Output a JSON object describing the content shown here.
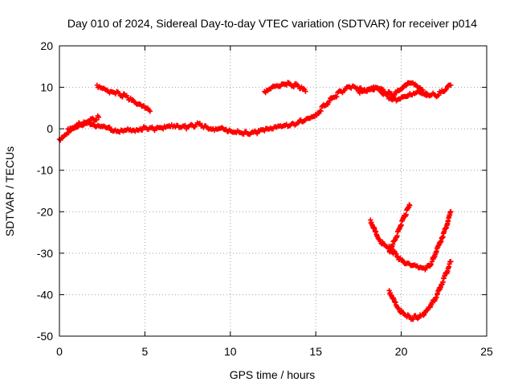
{
  "chart_data": {
    "type": "scatter",
    "title": "Day 010 of 2024, Sidereal Day-to-day VTEC variation (SDTVAR) for receiver p014",
    "xlabel": "GPS time / hours",
    "ylabel": "SDTVAR / TECUs",
    "xlim": [
      0,
      25
    ],
    "ylim": [
      -50,
      20
    ],
    "xticks": [
      0,
      5,
      10,
      15,
      20,
      25
    ],
    "yticks": [
      -50,
      -40,
      -30,
      -20,
      -10,
      0,
      10,
      20
    ],
    "xtick_labels": [
      "0",
      "5",
      "10",
      "15",
      "20",
      "25"
    ],
    "ytick_labels": [
      "-50",
      "-40",
      "-30",
      "-20",
      "-10",
      "0",
      "10",
      "20"
    ],
    "grid": true,
    "marker_color": "#ff0000",
    "series": [
      {
        "x": [
          0.0,
          0.3,
          0.6,
          0.9,
          1.2,
          1.5,
          1.8,
          2.1,
          2.4,
          2.8,
          3.2,
          3.6,
          4.0,
          4.5,
          5.0,
          5.5,
          6.0,
          6.5,
          7.0,
          7.5,
          8.0,
          8.5,
          9.0,
          9.5,
          10.0,
          10.5,
          11.0,
          11.5,
          12.0,
          12.5,
          13.0,
          13.5,
          14.0,
          14.5,
          15.0,
          15.5,
          16.0,
          16.5,
          17.0,
          17.5,
          18.0,
          18.5,
          19.0,
          19.5,
          20.0,
          20.5,
          21.0,
          21.5,
          22.0,
          22.5,
          22.9
        ],
        "y": [
          -2.5,
          -1.5,
          -0.5,
          0.5,
          1.2,
          1.3,
          1.0,
          0.5,
          0.5,
          0.2,
          -0.5,
          -0.3,
          0.0,
          -0.2,
          0.3,
          0.0,
          0.2,
          0.5,
          0.3,
          0.4,
          1.0,
          0.7,
          0.0,
          0.3,
          -0.5,
          -0.8,
          -1.2,
          -0.8,
          -0.5,
          0.0,
          0.5,
          0.8,
          1.5,
          2.5,
          3.5,
          5.5,
          7.5,
          9.0,
          10.0,
          9.5,
          9.0,
          10.0,
          8.5,
          7.0,
          7.5,
          8.5,
          9.0,
          8.5,
          8.0,
          9.0,
          10.5
        ]
      },
      {
        "x": [
          0.5,
          1.0,
          1.5,
          2.0,
          2.3
        ],
        "y": [
          0.0,
          0.8,
          1.5,
          2.3,
          2.8
        ]
      },
      {
        "x": [
          2.2,
          2.6,
          3.0,
          3.5,
          4.0,
          4.5,
          5.0,
          5.3
        ],
        "y": [
          10.5,
          9.8,
          9.0,
          8.5,
          7.5,
          6.0,
          5.0,
          4.2
        ]
      },
      {
        "x": [
          12.0,
          12.5,
          13.0,
          13.5,
          14.0,
          14.4
        ],
        "y": [
          9.0,
          10.3,
          10.8,
          10.8,
          10.2,
          9.0
        ]
      },
      {
        "x": [
          17.5,
          18.0,
          18.5,
          19.0,
          19.5,
          20.0,
          20.5,
          21.0,
          21.5
        ],
        "y": [
          9.0,
          9.5,
          10.0,
          9.0,
          8.0,
          9.5,
          11.0,
          10.0,
          8.0
        ]
      },
      {
        "x": [
          18.2,
          18.6,
          19.0,
          19.4,
          19.8,
          20.2,
          20.6,
          21.0,
          21.4,
          21.8,
          22.2,
          22.6,
          22.9
        ],
        "y": [
          -22.0,
          -26.0,
          -28.0,
          -29.0,
          -31.0,
          -32.5,
          -33.0,
          -33.5,
          -34.0,
          -32.0,
          -28.0,
          -24.0,
          -20.0
        ]
      },
      {
        "x": [
          19.3,
          19.6,
          19.9,
          20.2,
          20.5
        ],
        "y": [
          -29.5,
          -27.0,
          -24.0,
          -21.0,
          -18.5
        ]
      },
      {
        "x": [
          19.3,
          19.7,
          20.1,
          20.5,
          20.9,
          21.3,
          21.7,
          22.1,
          22.5,
          22.9
        ],
        "y": [
          -39.0,
          -42.5,
          -44.5,
          -45.5,
          -45.5,
          -45.0,
          -43.0,
          -40.0,
          -36.0,
          -32.0
        ]
      }
    ]
  }
}
